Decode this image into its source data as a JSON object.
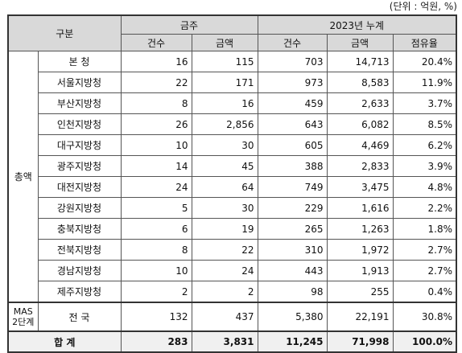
{
  "unit_note": "(단위 : 억원, %)",
  "header": {
    "category": "구분",
    "group_month": "금주",
    "group_year": "2023년 누계",
    "count": "건수",
    "amount": "금액",
    "count2": "건수",
    "amount2": "금액",
    "share": "점유율"
  },
  "group_label": "총액",
  "rows": [
    {
      "name": "본 청",
      "w_count": "16",
      "w_amount": "115",
      "y_count": "703",
      "y_amount": "14,713",
      "share": "20.4%"
    },
    {
      "name": "서울지방청",
      "w_count": "22",
      "w_amount": "171",
      "y_count": "973",
      "y_amount": "8,583",
      "share": "11.9%"
    },
    {
      "name": "부산지방청",
      "w_count": "8",
      "w_amount": "16",
      "y_count": "459",
      "y_amount": "2,633",
      "share": "3.7%"
    },
    {
      "name": "인천지방청",
      "w_count": "26",
      "w_amount": "2,856",
      "y_count": "643",
      "y_amount": "6,082",
      "share": "8.5%"
    },
    {
      "name": "대구지방청",
      "w_count": "10",
      "w_amount": "30",
      "y_count": "605",
      "y_amount": "4,469",
      "share": "6.2%"
    },
    {
      "name": "광주지방청",
      "w_count": "14",
      "w_amount": "45",
      "y_count": "388",
      "y_amount": "2,833",
      "share": "3.9%"
    },
    {
      "name": "대전지방청",
      "w_count": "24",
      "w_amount": "64",
      "y_count": "749",
      "y_amount": "3,475",
      "share": "4.8%"
    },
    {
      "name": "강원지방청",
      "w_count": "5",
      "w_amount": "30",
      "y_count": "229",
      "y_amount": "1,616",
      "share": "2.2%"
    },
    {
      "name": "충북지방청",
      "w_count": "6",
      "w_amount": "19",
      "y_count": "265",
      "y_amount": "1,263",
      "share": "1.8%"
    },
    {
      "name": "전북지방청",
      "w_count": "8",
      "w_amount": "22",
      "y_count": "310",
      "y_amount": "1,972",
      "share": "2.7%"
    },
    {
      "name": "경남지방청",
      "w_count": "10",
      "w_amount": "24",
      "y_count": "443",
      "y_amount": "1,913",
      "share": "2.7%"
    },
    {
      "name": "제주지방청",
      "w_count": "2",
      "w_amount": "2",
      "y_count": "98",
      "y_amount": "255",
      "share": "0.4%"
    }
  ],
  "mas": {
    "group_line1": "MAS",
    "group_line2": "2단계",
    "name": "전 국",
    "w_count": "132",
    "w_amount": "437",
    "y_count": "5,380",
    "y_amount": "22,191",
    "share": "30.8%"
  },
  "total": {
    "label": "합 계",
    "w_count": "283",
    "w_amount": "3,831",
    "y_count": "11,245",
    "y_amount": "71,998",
    "share": "100.0%"
  }
}
